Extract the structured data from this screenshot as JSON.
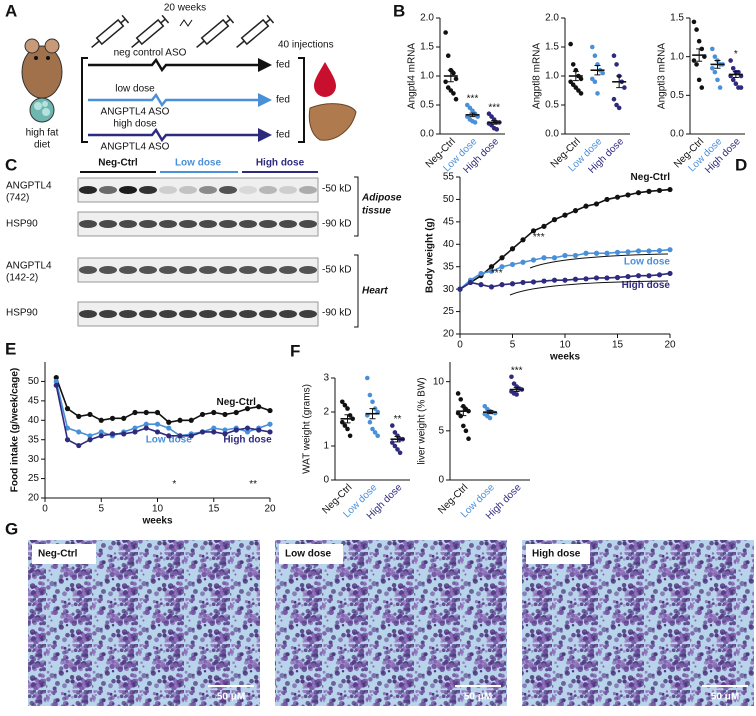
{
  "panel_labels": [
    "A",
    "B",
    "C",
    "D",
    "E",
    "F",
    "G"
  ],
  "panel_a": {
    "duration": "20 weeks",
    "injections": "40 injections",
    "diet": [
      "high fat",
      "diet"
    ],
    "arms": [
      {
        "lines": [
          "neg control ASO"
        ],
        "outcome": "fed"
      },
      {
        "lines": [
          "low dose",
          "ANGPTL4 ASO"
        ],
        "outcome": "fed"
      },
      {
        "lines": [
          "high dose",
          "ANGPTL4 ASO"
        ],
        "outcome": "fed"
      }
    ]
  },
  "panel_c": {
    "groups": [
      "Neg-Ctrl",
      "Low dose",
      "High dose"
    ],
    "rows": [
      {
        "lines": [
          "ANGPTL4",
          "(742)"
        ],
        "marker": "-50 kD"
      },
      {
        "lines": [
          "HSP90"
        ],
        "marker": "-90 kD"
      },
      {
        "lines": [
          "ANGPTL4",
          "(142-2)"
        ],
        "marker": "-50 kD"
      },
      {
        "lines": [
          "HSP90"
        ],
        "marker": "-90 kD"
      }
    ],
    "tissues": [
      [
        "Adipose",
        "tissue"
      ],
      [
        "Heart"
      ]
    ]
  },
  "panel_g": {
    "images": [
      {
        "label": "Neg-Ctrl",
        "scale": "50 μM"
      },
      {
        "label": "Low dose",
        "scale": "50 μM"
      },
      {
        "label": "High dose",
        "scale": "50 μM"
      }
    ]
  },
  "chart_data": [
    {
      "type": "dotplot",
      "ylabel": "Angptl4 mRNA",
      "ylim": [
        0,
        2
      ],
      "yticks": [
        {
          "value": 0,
          "label": "0.0"
        },
        0.5,
        {
          "value": 1,
          "label": "1.0"
        },
        1.5,
        {
          "value": 2,
          "label": "2.0"
        }
      ],
      "groups": [
        {
          "name": "Neg-Ctrl",
          "color": "#111111",
          "values": [
            1.75,
            1.35,
            1.1,
            1.05,
            0.95,
            0.9,
            0.8,
            0.75,
            0.7,
            0.6
          ],
          "mean": 1.0,
          "sem": 0.1
        },
        {
          "name": "Low dose",
          "color": "#4a90d9",
          "values": [
            0.5,
            0.45,
            0.4,
            0.35,
            0.3,
            0.3,
            0.25,
            0.22,
            0.2
          ],
          "mean": 0.33,
          "sem": 0.03,
          "significance": "***"
        },
        {
          "name": "High dose",
          "color": "#2e2a7e",
          "values": [
            0.35,
            0.3,
            0.25,
            0.2,
            0.2,
            0.18,
            0.15,
            0.1,
            0.08
          ],
          "mean": 0.2,
          "sem": 0.03,
          "significance": "***"
        }
      ]
    },
    {
      "type": "dotplot",
      "ylabel": "Angptl8 mRNA",
      "ylim": [
        0,
        2
      ],
      "yticks": [
        {
          "value": 0,
          "label": "0.0"
        },
        0.5,
        {
          "value": 1,
          "label": "1.0"
        },
        1.5,
        {
          "value": 2,
          "label": "2.0"
        }
      ],
      "groups": [
        {
          "name": "Neg-Ctrl",
          "color": "#111111",
          "values": [
            1.55,
            1.2,
            1.1,
            1.0,
            0.95,
            0.9,
            0.85,
            0.8,
            0.75,
            0.7
          ],
          "mean": 1.0,
          "sem": 0.08
        },
        {
          "name": "Low dose",
          "color": "#4a90d9",
          "values": [
            1.5,
            1.35,
            1.2,
            1.1,
            1.05,
            0.95,
            0.9,
            0.7
          ],
          "mean": 1.1,
          "sem": 0.08
        },
        {
          "name": "High dose",
          "color": "#2e2a7e",
          "values": [
            1.35,
            1.2,
            1.0,
            0.9,
            0.8,
            0.6,
            0.5,
            0.45
          ],
          "mean": 0.9,
          "sem": 0.1
        }
      ]
    },
    {
      "type": "dotplot",
      "ylabel": "Angptl3 mRNA",
      "ylim": [
        0,
        1.5
      ],
      "yticks": [
        {
          "value": 0,
          "label": "0.0"
        },
        0.5,
        {
          "value": 1,
          "label": "1.0"
        },
        1.5
      ],
      "groups": [
        {
          "name": "Neg-Ctrl",
          "color": "#111111",
          "values": [
            1.45,
            1.35,
            1.2,
            1.1,
            1.0,
            0.95,
            0.9,
            0.7,
            0.6
          ],
          "mean": 1.02,
          "sem": 0.08
        },
        {
          "name": "Low dose",
          "color": "#4a90d9",
          "values": [
            1.1,
            1.0,
            0.95,
            0.9,
            0.9,
            0.85,
            0.8,
            0.7,
            0.6
          ],
          "mean": 0.9,
          "sem": 0.05
        },
        {
          "name": "High dose",
          "color": "#2e2a7e",
          "values": [
            0.95,
            0.85,
            0.8,
            0.8,
            0.75,
            0.75,
            0.7,
            0.65,
            0.6,
            0.6
          ],
          "mean": 0.77,
          "sem": 0.04,
          "significance": "*"
        }
      ]
    },
    {
      "type": "line",
      "xlabel": "weeks",
      "ylabel": "Body weight (g)",
      "xlim": [
        0,
        20
      ],
      "ylim": [
        20,
        55
      ],
      "xticks": [
        0,
        5,
        10,
        15,
        20
      ],
      "yticks": [
        20,
        25,
        30,
        35,
        40,
        45,
        50,
        55
      ],
      "x": [
        0,
        1,
        2,
        3,
        4,
        5,
        6,
        7,
        8,
        9,
        10,
        11,
        12,
        13,
        14,
        15,
        16,
        17,
        18,
        19,
        20
      ],
      "series": [
        {
          "name": "Neg-Ctrl",
          "color": "#111111",
          "values": [
            30,
            31.5,
            33,
            35,
            37,
            39,
            41,
            43,
            44,
            45.5,
            46.5,
            47.5,
            48.5,
            49,
            50,
            50.5,
            51,
            51.5,
            51.8,
            52,
            52.2
          ]
        },
        {
          "name": "Low dose",
          "color": "#4a90d9",
          "values": [
            30,
            32,
            33.5,
            34,
            35,
            35.5,
            36,
            36.5,
            37,
            37,
            37.5,
            37.5,
            38,
            38,
            38,
            38.2,
            38.3,
            38.5,
            38.5,
            38.6,
            38.8
          ]
        },
        {
          "name": "High dose",
          "color": "#2e2a7e",
          "values": [
            30,
            31.5,
            31,
            30.5,
            31,
            31.2,
            31.5,
            31.6,
            31.8,
            32,
            32,
            32.2,
            32.3,
            32.5,
            32.5,
            32.6,
            32.8,
            33,
            33,
            33.2,
            33.5
          ]
        }
      ],
      "annotations": [
        "***",
        "***"
      ]
    },
    {
      "type": "line",
      "xlabel": "weeks",
      "ylabel": "Food intake (g/week/cage)",
      "xlim": [
        0,
        20
      ],
      "ylim": [
        20,
        55
      ],
      "xticks": [
        0,
        5,
        10,
        15,
        20
      ],
      "yticks": [
        20,
        25,
        30,
        35,
        40,
        45,
        50
      ],
      "x": [
        1,
        2,
        3,
        4,
        5,
        6,
        7,
        8,
        9,
        10,
        11,
        12,
        13,
        14,
        15,
        16,
        17,
        18,
        19,
        20
      ],
      "series": [
        {
          "name": "Neg-Ctrl",
          "color": "#111111",
          "values": [
            51,
            43,
            41,
            41.5,
            40,
            40.5,
            40.5,
            42,
            42,
            42,
            39.5,
            40,
            40,
            41.5,
            42,
            41.5,
            42,
            43,
            43.5,
            42.5
          ]
        },
        {
          "name": "Low dose",
          "color": "#4a90d9",
          "values": [
            50,
            38,
            37,
            36,
            37,
            36,
            37,
            38,
            39,
            39,
            38,
            36,
            36.5,
            37,
            38,
            37.5,
            38,
            37,
            38,
            39
          ]
        },
        {
          "name": "High dose",
          "color": "#2e2a7e",
          "values": [
            49,
            35,
            33.5,
            35,
            36,
            36.5,
            36.5,
            37,
            38,
            37,
            36,
            36,
            36,
            37,
            37,
            36.5,
            37.5,
            38,
            37.5,
            37
          ]
        }
      ],
      "annotations": [
        "*",
        "**"
      ]
    },
    {
      "type": "dotplot",
      "ylabel": "WAT weight (grams)",
      "ylim": [
        0,
        3
      ],
      "yticks": [
        0,
        1,
        2,
        3
      ],
      "groups": [
        {
          "name": "Neg-Ctrl",
          "color": "#111111",
          "values": [
            2.3,
            2.2,
            2.1,
            1.9,
            1.8,
            1.7,
            1.6,
            1.5,
            1.3
          ],
          "mean": 1.8,
          "sem": 0.12
        },
        {
          "name": "Low dose",
          "color": "#4a90d9",
          "values": [
            3.0,
            2.5,
            2.3,
            2.1,
            2.0,
            1.9,
            1.7,
            1.5,
            1.4,
            1.3
          ],
          "mean": 1.95,
          "sem": 0.15
        },
        {
          "name": "High dose",
          "color": "#2e2a7e",
          "values": [
            1.6,
            1.4,
            1.3,
            1.2,
            1.2,
            1.1,
            1.0,
            0.9,
            0.8
          ],
          "mean": 1.2,
          "sem": 0.08,
          "significance": "**"
        }
      ]
    },
    {
      "type": "dotplot",
      "ylabel": "liver weight (% BW)",
      "ylim": [
        0,
        12
      ],
      "yticks": [
        0,
        5,
        10
      ],
      "groups": [
        {
          "name": "Neg-Ctrl",
          "color": "#111111",
          "values": [
            8.8,
            8.2,
            7.5,
            7.2,
            7,
            6.8,
            6.5,
            5.5,
            5,
            4.2
          ],
          "mean": 7,
          "sem": 0.45
        },
        {
          "name": "Low dose",
          "color": "#4a90d9",
          "values": [
            7.5,
            7.2,
            7,
            6.9,
            6.8,
            6.7,
            6.5,
            6.3
          ],
          "mean": 6.9,
          "sem": 0.15
        },
        {
          "name": "High dose",
          "color": "#2e2a7e",
          "values": [
            10.5,
            9.8,
            9.5,
            9.3,
            9.2,
            9,
            8.8,
            8.7
          ],
          "mean": 9.2,
          "sem": 0.2,
          "significance": "***"
        }
      ]
    }
  ]
}
